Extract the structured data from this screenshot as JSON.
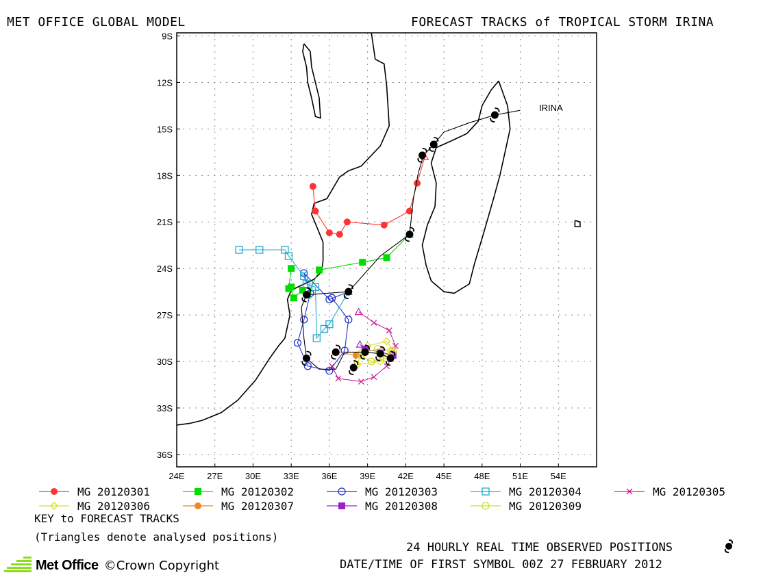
{
  "header": {
    "left_title": "MET OFFICE GLOBAL MODEL",
    "right_title": "FORECAST TRACKS of TROPICAL STORM IRINA"
  },
  "map": {
    "lon_ticks": [
      "24E",
      "27E",
      "30E",
      "33E",
      "36E",
      "39E",
      "42E",
      "45E",
      "48E",
      "51E",
      "54E"
    ],
    "lat_ticks": [
      "9S",
      "12S",
      "15S",
      "18S",
      "21S",
      "24S",
      "27S",
      "30S",
      "33S",
      "36S"
    ],
    "lon_range": [
      24,
      57
    ],
    "lat_range": [
      -36.8,
      -8.8
    ],
    "grid": "dotted",
    "storm_label": "IRINA"
  },
  "legend": {
    "items": [
      {
        "label": "MG 20120301",
        "color": "#ff3333",
        "marker": "filled-circle"
      },
      {
        "label": "MG 20120302",
        "color": "#00dd00",
        "marker": "filled-square"
      },
      {
        "label": "MG 20120303",
        "color": "#2233cc",
        "marker": "open-circle"
      },
      {
        "label": "MG 20120304",
        "color": "#22aacc",
        "marker": "open-square"
      },
      {
        "label": "MG 20120305",
        "color": "#cc2299",
        "marker": "x"
      },
      {
        "label": "MG 20120306",
        "color": "#dddd22",
        "marker": "open-diamond"
      },
      {
        "label": "MG 20120307",
        "color": "#ee8822",
        "marker": "filled-circle"
      },
      {
        "label": "MG 20120308",
        "color": "#9922cc",
        "marker": "filled-square"
      },
      {
        "label": "MG 20120309",
        "color": "#ccdd33",
        "marker": "open-circle"
      }
    ],
    "key_title": "KEY to FORECAST TRACKS",
    "key_note": "(Triangles denote analysed positions)"
  },
  "footer": {
    "observed": "24 HOURLY REAL TIME OBSERVED POSITIONS",
    "datetime": "DATE/TIME OF FIRST SYMBOL 00Z 27 FEBRUARY 2012",
    "logo_text": "Met Office",
    "copyright": "©Crown Copyright"
  },
  "chart_data": {
    "type": "scatter",
    "title": "FORECAST TRACKS of TROPICAL STORM IRINA",
    "xlabel": "",
    "ylabel": "",
    "xlim": [
      24,
      57
    ],
    "ylim": [
      -36.8,
      -8.8
    ],
    "observed_track": {
      "name": "IRINA",
      "points": [
        [
          51.0,
          -13.8
        ],
        [
          49.0,
          -14.1
        ],
        [
          47.0,
          -14.6
        ],
        [
          45.0,
          -15.2
        ],
        [
          44.2,
          -16.0
        ],
        [
          43.4,
          -16.7
        ],
        [
          43.0,
          -17.8
        ],
        [
          42.6,
          -19.5
        ],
        [
          42.3,
          -21.8
        ],
        [
          40.0,
          -23.2
        ],
        [
          37.5,
          -25.5
        ],
        [
          34.2,
          -25.7
        ],
        [
          33.8,
          -26.5
        ],
        [
          34.0,
          -28.5
        ],
        [
          34.2,
          -29.8
        ],
        [
          35.2,
          -30.5
        ],
        [
          36.5,
          -30.5
        ],
        [
          37.2,
          -29.4
        ],
        [
          38.8,
          -29.4
        ],
        [
          40.0,
          -29.5
        ],
        [
          40.8,
          -29.8
        ]
      ],
      "symbols": [
        [
          49.0,
          -14.1
        ],
        [
          44.2,
          -16.0
        ],
        [
          43.3,
          -16.7
        ],
        [
          42.3,
          -21.8
        ],
        [
          37.5,
          -25.5
        ],
        [
          34.2,
          -25.7
        ],
        [
          34.2,
          -29.8
        ],
        [
          36.5,
          -29.4
        ],
        [
          37.9,
          -30.4
        ],
        [
          38.8,
          -29.4
        ],
        [
          40.8,
          -29.8
        ],
        [
          40.0,
          -29.5
        ]
      ]
    },
    "series": [
      {
        "name": "MG 20120301",
        "points": [
          [
            43.5,
            -16.8
          ],
          [
            42.9,
            -18.5
          ],
          [
            42.3,
            -20.3
          ],
          [
            40.3,
            -21.2
          ],
          [
            37.4,
            -21.0
          ],
          [
            36.8,
            -21.8
          ],
          [
            36.0,
            -21.7
          ],
          [
            34.9,
            -20.3
          ],
          [
            34.7,
            -18.7
          ]
        ]
      },
      {
        "name": "MG 20120302",
        "points": [
          [
            42.3,
            -21.8
          ],
          [
            40.5,
            -23.3
          ],
          [
            38.6,
            -23.6
          ],
          [
            35.2,
            -24.1
          ],
          [
            34.3,
            -25.7
          ],
          [
            33.9,
            -25.4
          ],
          [
            33.2,
            -25.9
          ],
          [
            33.0,
            -25.2
          ],
          [
            32.8,
            -25.3
          ],
          [
            33.0,
            -24.0
          ]
        ]
      },
      {
        "name": "MG 20120303",
        "points": [
          [
            37.5,
            -25.5
          ],
          [
            36.0,
            -26.0
          ],
          [
            34.0,
            -24.3
          ],
          [
            34.5,
            -25.6
          ],
          [
            34.0,
            -27.3
          ],
          [
            33.5,
            -28.8
          ],
          [
            34.3,
            -30.3
          ],
          [
            36.0,
            -30.6
          ],
          [
            37.2,
            -29.3
          ],
          [
            37.5,
            -27.3
          ],
          [
            36.2,
            -25.9
          ]
        ]
      },
      {
        "name": "MG 20120304",
        "points": [
          [
            37.5,
            -25.5
          ],
          [
            36.0,
            -27.6
          ],
          [
            35.6,
            -27.9
          ],
          [
            35.0,
            -28.5
          ],
          [
            34.9,
            -25.2
          ],
          [
            34.2,
            -25.0
          ],
          [
            34.0,
            -24.5
          ],
          [
            32.8,
            -23.2
          ],
          [
            32.5,
            -22.8
          ],
          [
            30.5,
            -22.8
          ],
          [
            28.9,
            -22.8
          ]
        ]
      },
      {
        "name": "MG 20120305",
        "points": [
          [
            38.3,
            -26.8
          ],
          [
            39.5,
            -27.5
          ],
          [
            40.7,
            -28.0
          ],
          [
            41.2,
            -29.0
          ],
          [
            41.0,
            -29.6
          ],
          [
            40.5,
            -30.3
          ],
          [
            39.5,
            -31.0
          ],
          [
            38.5,
            -31.3
          ],
          [
            36.7,
            -31.1
          ],
          [
            36.2,
            -30.3
          ]
        ]
      },
      {
        "name": "MG 20120306",
        "points": [
          [
            41.0,
            -29.3
          ],
          [
            40.5,
            -28.7
          ],
          [
            39.0,
            -29.0
          ],
          [
            38.5,
            -29.4
          ],
          [
            38.2,
            -30.2
          ],
          [
            40.0,
            -30.0
          ],
          [
            40.8,
            -29.3
          ]
        ]
      },
      {
        "name": "MG 20120307",
        "points": [
          [
            36.5,
            -29.4
          ],
          [
            38.1,
            -29.6
          ],
          [
            37.9,
            -30.4
          ]
        ]
      },
      {
        "name": "MG 20120308",
        "points": [
          [
            38.4,
            -28.9
          ],
          [
            38.8,
            -29.2
          ],
          [
            40.0,
            -29.4
          ],
          [
            41.0,
            -29.6
          ]
        ]
      },
      {
        "name": "MG 20120309",
        "points": [
          [
            38.8,
            -29.4
          ],
          [
            39.8,
            -29.2
          ],
          [
            41.0,
            -29.3
          ],
          [
            40.5,
            -29.8
          ],
          [
            39.3,
            -30.0
          ],
          [
            38.5,
            -29.6
          ]
        ]
      }
    ]
  }
}
